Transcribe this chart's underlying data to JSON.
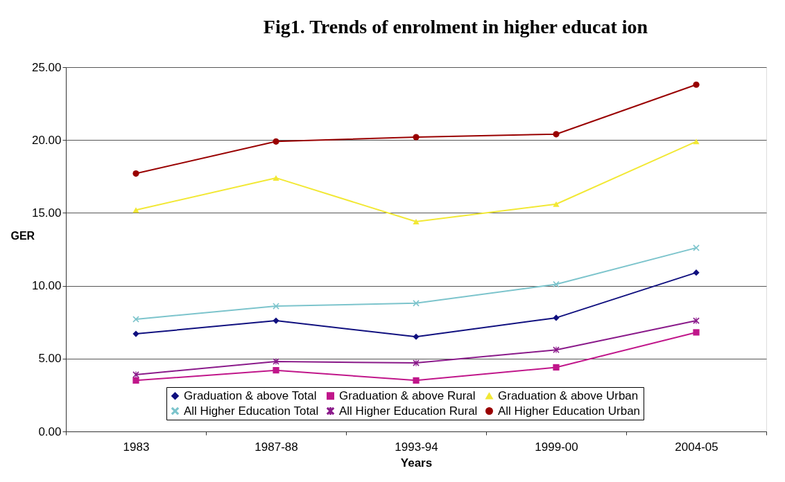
{
  "chart_data": {
    "type": "line",
    "title": "Fig1. Trends of enrolment in higher educat ion",
    "xlabel": "Years",
    "ylabel": "GER",
    "categories": [
      "1983",
      "1987-88",
      "1993-94",
      "1999-00",
      "2004-05"
    ],
    "ylim": [
      0,
      25
    ],
    "yticks": [
      {
        "value": 0,
        "label": "0.00"
      },
      {
        "value": 5,
        "label": "5.00"
      },
      {
        "value": 10,
        "label": "10.00"
      },
      {
        "value": 15,
        "label": "15.00"
      },
      {
        "value": 20,
        "label": "20.00"
      },
      {
        "value": 25,
        "label": "25.00"
      }
    ],
    "grid": "y",
    "legend": "bottom",
    "line_style": "solid",
    "series": [
      {
        "name": "Graduation & above Total",
        "color": "#10107f",
        "marker": "diamond",
        "values": [
          6.7,
          7.6,
          6.5,
          7.8,
          10.9
        ]
      },
      {
        "name": "Graduation & above Rural",
        "color": "#c0168a",
        "marker": "square",
        "values": [
          3.5,
          4.2,
          3.5,
          4.4,
          6.8
        ]
      },
      {
        "name": "Graduation & above Urban",
        "color": "#f2e835",
        "marker": "triangle",
        "values": [
          15.2,
          17.4,
          14.4,
          15.6,
          19.9
        ]
      },
      {
        "name": "All Higher Education Total",
        "color": "#7cc4cc",
        "marker": "cross",
        "values": [
          7.7,
          8.6,
          8.8,
          10.1,
          12.6
        ]
      },
      {
        "name": "All Higher Education Rural",
        "color": "#8a1a8a",
        "marker": "star",
        "values": [
          3.9,
          4.8,
          4.7,
          5.6,
          7.6
        ]
      },
      {
        "name": "All Higher Education Urban",
        "color": "#990000",
        "marker": "circle",
        "values": [
          17.7,
          19.9,
          20.2,
          20.4,
          23.8
        ]
      }
    ]
  }
}
